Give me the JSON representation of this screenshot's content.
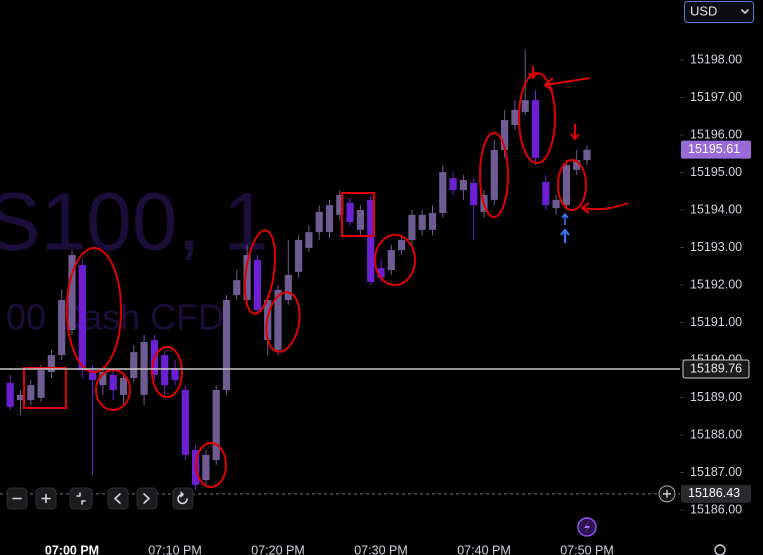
{
  "chart_data": {
    "type": "candlestick",
    "currency": "USD",
    "watermark": {
      "title": "S100, 1",
      "subtitle": "00 Cash CFD"
    },
    "categories": [
      null,
      null,
      null,
      null,
      null,
      null,
      "07:00 PM",
      null,
      null,
      null,
      null,
      null,
      null,
      null,
      null,
      null,
      "07:10 PM",
      null,
      null,
      null,
      null,
      null,
      null,
      null,
      null,
      null,
      "07:20 PM",
      null,
      null,
      null,
      null,
      null,
      null,
      null,
      null,
      null,
      "07:30 PM",
      null,
      null,
      null,
      null,
      null,
      null,
      null,
      null,
      null,
      "07:40 PM",
      null,
      null,
      null,
      null,
      null,
      null,
      null,
      null,
      null,
      "07:50 PM"
    ],
    "open": [
      15189.39,
      15188.93,
      15188.93,
      15188.99,
      15189.68,
      15190.13,
      15190.8,
      15192.53,
      15189.73,
      15189.33,
      15189.6,
      15189.07,
      15189.52,
      15189.07,
      15190.53,
      15190.13,
      15189.79,
      15189.2,
      15187.6,
      15186.8,
      15187.33,
      15189.2,
      15191.73,
      15191.6,
      15192.67,
      15190.53,
      15190.27,
      15191.6,
      15192.35,
      15192.99,
      15193.41,
      15193.41,
      15193.87,
      15194.19,
      15193.47,
      15194.27,
      15192.45,
      15192.4,
      15192.93,
      15193.2,
      15193.47,
      15193.47,
      15193.92,
      15194.85,
      15194.53,
      15194.72,
      15193.95,
      15194.27,
      15195.6,
      15196.27,
      15196.61,
      15196.93,
      15194.75,
      15194.05,
      15194.13,
      15195.07,
      15195.33
    ],
    "high": [
      15189.6,
      15189.2,
      15189.47,
      15189.87,
      15190.27,
      15191.87,
      15192.93,
      15192.67,
      15189.87,
      15189.79,
      15189.73,
      15189.68,
      15190.4,
      15190.67,
      15190.67,
      15190.27,
      15190.0,
      15189.33,
      15187.73,
      15187.6,
      15189.33,
      15191.73,
      15192.4,
      15193.07,
      15192.8,
      15191.73,
      15192.0,
      15193.2,
      15193.33,
      15193.6,
      15194.13,
      15194.27,
      15194.53,
      15194.32,
      15194.13,
      15194.4,
      15192.67,
      15193.07,
      15193.33,
      15194.0,
      15194.0,
      15194.13,
      15195.2,
      15195.01,
      15194.93,
      15194.85,
      15194.53,
      15195.87,
      15196.67,
      15196.93,
      15198.27,
      15197.2,
      15194.93,
      15194.4,
      15195.33,
      15195.6,
      15195.73
    ],
    "low": [
      15188.67,
      15188.53,
      15188.8,
      15188.88,
      15189.52,
      15190.0,
      15190.67,
      15189.52,
      15186.93,
      15189.07,
      15188.93,
      15188.8,
      15189.41,
      15188.8,
      15189.47,
      15189.07,
      15189.33,
      15187.33,
      15186.53,
      15186.67,
      15187.2,
      15189.07,
      15191.6,
      15191.47,
      15191.2,
      15190.13,
      15190.13,
      15191.47,
      15192.19,
      15192.88,
      15193.2,
      15193.25,
      15193.73,
      15193.57,
      15193.31,
      15192.0,
      15192.08,
      15192.27,
      15192.8,
      15193.07,
      15193.33,
      15193.33,
      15193.79,
      15194.4,
      15194.27,
      15193.2,
      15193.79,
      15194.13,
      15195.39,
      15196.13,
      15196.53,
      15195.2,
      15194.0,
      15193.87,
      15194.0,
      15194.93,
      15195.2
    ],
    "close": [
      15188.75,
      15189.07,
      15189.33,
      15189.73,
      15190.13,
      15191.6,
      15192.8,
      15189.73,
      15189.47,
      15189.68,
      15189.2,
      15189.52,
      15190.21,
      15190.48,
      15189.6,
      15189.33,
      15189.47,
      15187.47,
      15186.67,
      15187.47,
      15189.2,
      15191.6,
      15192.13,
      15192.8,
      15191.33,
      15191.6,
      15191.87,
      15192.27,
      15193.2,
      15193.41,
      15193.95,
      15194.13,
      15194.4,
      15193.68,
      15194.0,
      15192.08,
      15192.19,
      15192.93,
      15193.2,
      15193.87,
      15193.87,
      15193.92,
      15195.01,
      15194.53,
      15194.8,
      15194.13,
      15194.4,
      15195.6,
      15196.4,
      15196.67,
      15196.93,
      15195.39,
      15194.13,
      15194.27,
      15195.2,
      15195.33,
      15195.61
    ],
    "up_color": "#6e5c92",
    "down_color": "#6d1fd4",
    "ylim": [
      15185.2,
      15199.6
    ],
    "yticks": [
      {
        "value": 15186,
        "label": "15186.00"
      },
      {
        "value": 15187,
        "label": "15187.00"
      },
      {
        "value": 15188,
        "label": "15188.00"
      },
      {
        "value": 15189,
        "label": "15189.00"
      },
      {
        "value": 15190,
        "label": "15190.00"
      },
      {
        "value": 15191,
        "label": "15191.00"
      },
      {
        "value": 15192,
        "label": "15192.00"
      },
      {
        "value": 15193,
        "label": "15193.00"
      },
      {
        "value": 15194,
        "label": "15194.00"
      },
      {
        "value": 15195,
        "label": "15195.00"
      },
      {
        "value": 15196,
        "label": "15196.00"
      },
      {
        "value": 15197,
        "label": "15197.00"
      },
      {
        "value": 15198,
        "label": "15198.00"
      }
    ],
    "grid": false,
    "last_price": 15195.61,
    "reference_line": 15189.76,
    "crosshair_price": 15186.43
  }
}
